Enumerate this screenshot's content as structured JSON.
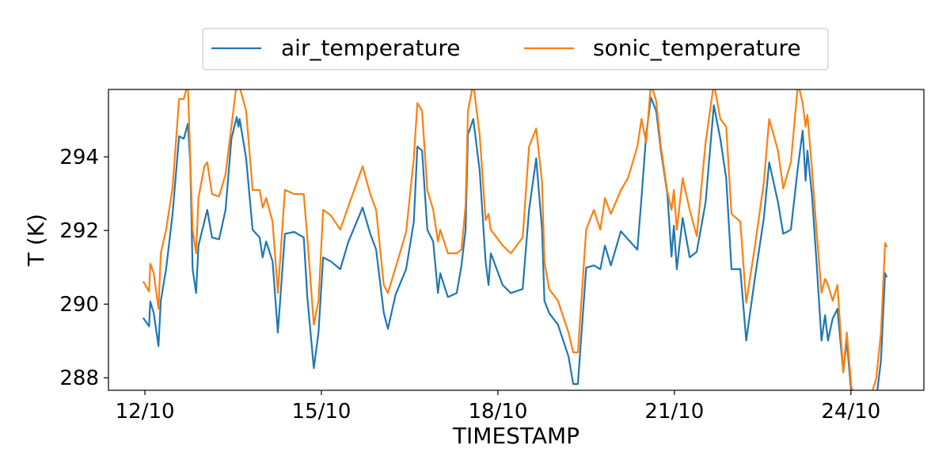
{
  "chart_data": {
    "type": "line",
    "title": "",
    "xlabel": "TIMESTAMP",
    "ylabel": "T (K)",
    "x_unit": "days since 12/10 00:00",
    "xlim": [
      -0.62,
      13.24
    ],
    "ylim": [
      287.66,
      295.83
    ],
    "grid": false,
    "legend_position": "top-center (outside, above plot)",
    "x_ticks": [
      0,
      3,
      6,
      9,
      12
    ],
    "x_tick_labels": [
      "12/10",
      "15/10",
      "18/10",
      "21/10",
      "24/10"
    ],
    "y_ticks": [
      288,
      290,
      292,
      294
    ],
    "y_tick_labels": [
      "288",
      "290",
      "292",
      "294"
    ],
    "x": [
      -0.03,
      0.07,
      0.09,
      0.15,
      0.23,
      0.27,
      0.36,
      0.47,
      0.58,
      0.66,
      0.73,
      0.77,
      0.81,
      0.87,
      0.91,
      1.01,
      1.06,
      1.14,
      1.26,
      1.37,
      1.47,
      1.56,
      1.59,
      1.61,
      1.72,
      1.83,
      1.95,
      2.0,
      2.06,
      2.17,
      2.26,
      2.38,
      2.54,
      2.7,
      2.76,
      2.87,
      2.95,
      3.03,
      3.16,
      3.32,
      3.46,
      3.7,
      3.83,
      3.93,
      4.06,
      4.13,
      4.26,
      4.44,
      4.57,
      4.63,
      4.71,
      4.8,
      4.9,
      4.98,
      5.02,
      5.15,
      5.3,
      5.38,
      5.45,
      5.49,
      5.58,
      5.69,
      5.79,
      5.84,
      5.88,
      6.08,
      6.22,
      6.42,
      6.53,
      6.65,
      6.75,
      6.79,
      6.87,
      7.02,
      7.2,
      7.28,
      7.36,
      7.5,
      7.63,
      7.74,
      7.82,
      7.92,
      8.09,
      8.21,
      8.37,
      8.44,
      8.52,
      8.6,
      8.69,
      8.77,
      8.88,
      8.95,
      8.99,
      9.04,
      9.14,
      9.26,
      9.38,
      9.53,
      9.67,
      9.78,
      9.88,
      9.97,
      10.12,
      10.22,
      10.37,
      10.52,
      10.61,
      10.76,
      10.85,
      10.98,
      11.1,
      11.18,
      11.23,
      11.26,
      11.34,
      11.42,
      11.5,
      11.56,
      11.61,
      11.69,
      11.77,
      11.87,
      11.93,
      12.01,
      12.13,
      12.34,
      12.43,
      12.51,
      12.58,
      12.61
    ],
    "series": [
      {
        "name": "air_temperature",
        "color": "#1f77b4",
        "values": [
          289.63,
          289.4,
          290.07,
          289.76,
          288.86,
          290.09,
          290.95,
          292.45,
          294.56,
          294.49,
          294.9,
          293.85,
          290.95,
          290.3,
          291.59,
          292.24,
          292.56,
          291.81,
          291.76,
          292.56,
          294.49,
          295.08,
          294.82,
          295.03,
          293.96,
          292.02,
          291.81,
          291.27,
          291.7,
          291.16,
          289.23,
          291.91,
          291.96,
          291.81,
          290.19,
          288.26,
          289.23,
          291.27,
          291.16,
          290.95,
          291.7,
          292.62,
          291.91,
          291.48,
          289.76,
          289.33,
          290.26,
          290.95,
          292.24,
          294.28,
          294.17,
          292.02,
          291.7,
          290.3,
          290.84,
          290.19,
          290.3,
          291.05,
          292.02,
          294.6,
          295.03,
          293.63,
          291.16,
          290.52,
          291.38,
          290.52,
          290.3,
          290.41,
          292.56,
          293.96,
          292.02,
          290.09,
          289.76,
          289.44,
          288.58,
          287.83,
          287.83,
          290.99,
          291.05,
          290.95,
          291.59,
          291.05,
          291.98,
          291.76,
          291.48,
          292.88,
          294.6,
          295.61,
          295.25,
          294.17,
          292.99,
          291.29,
          292.13,
          290.95,
          292.34,
          291.27,
          291.42,
          292.77,
          295.4,
          294.49,
          293.42,
          290.95,
          290.95,
          289.01,
          290.73,
          292.34,
          293.85,
          292.77,
          291.91,
          292.02,
          293.74,
          294.71,
          293.35,
          294.17,
          292.92,
          291.05,
          289.01,
          289.7,
          289.01,
          289.61,
          289.87,
          288.15,
          289.01,
          287.51,
          287.29,
          287.29,
          287.4,
          288.47,
          290.84,
          290.73
        ]
      },
      {
        "name": "sonic_temperature",
        "color": "#ff7f0e",
        "values": [
          290.62,
          290.34,
          291.1,
          290.84,
          289.87,
          291.38,
          292.02,
          293.16,
          295.57,
          295.57,
          296.0,
          293.96,
          292.02,
          291.38,
          292.88,
          293.74,
          293.85,
          292.99,
          292.92,
          293.53,
          294.82,
          296.0,
          296.0,
          295.9,
          295.25,
          293.1,
          293.1,
          292.62,
          292.88,
          292.24,
          290.3,
          293.1,
          292.99,
          292.99,
          291.81,
          289.44,
          290.09,
          292.56,
          292.41,
          292.02,
          292.67,
          293.74,
          292.99,
          292.56,
          290.52,
          290.3,
          290.99,
          291.96,
          293.96,
          295.46,
          295.25,
          293.1,
          292.56,
          291.7,
          292.02,
          291.38,
          291.38,
          291.48,
          292.67,
          295.25,
          296.0,
          294.6,
          292.28,
          292.45,
          292.02,
          291.59,
          291.38,
          291.81,
          294.28,
          294.77,
          293.31,
          291.16,
          290.41,
          290.09,
          289.23,
          288.69,
          288.69,
          292.02,
          292.56,
          292.02,
          292.88,
          292.45,
          293.1,
          293.42,
          294.28,
          295.03,
          294.39,
          296.0,
          295.51,
          294.28,
          293.05,
          292.56,
          293.1,
          292.02,
          293.42,
          292.56,
          291.85,
          294.39,
          296.0,
          295.03,
          294.82,
          292.45,
          292.24,
          290.04,
          291.59,
          293.31,
          295.03,
          294.17,
          293.14,
          293.85,
          296.0,
          295.46,
          294.82,
          295.14,
          293.63,
          291.91,
          290.3,
          290.69,
          290.52,
          290.09,
          290.52,
          288.15,
          289.23,
          287.72,
          287.4,
          287.51,
          287.98,
          289.23,
          291.66,
          291.55
        ]
      }
    ]
  }
}
